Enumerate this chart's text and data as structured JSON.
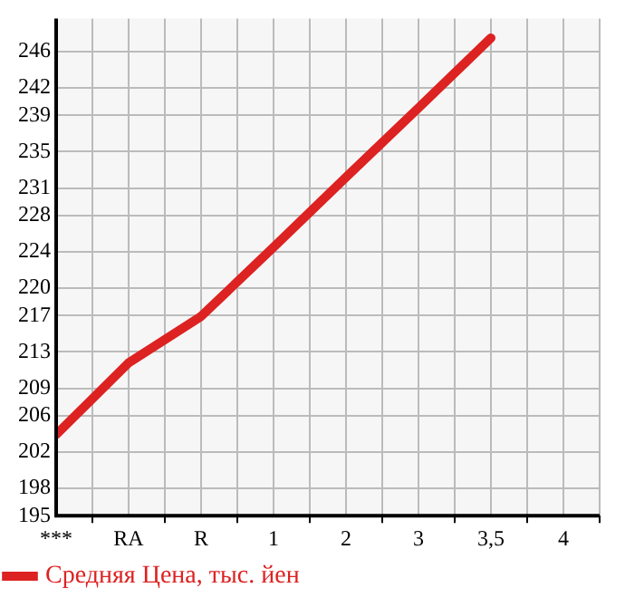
{
  "chart_data": {
    "type": "line",
    "categories": [
      "***",
      "RA",
      "R",
      "1",
      "2",
      "3",
      "3,5",
      "4"
    ],
    "series": [
      {
        "name": "Средняя Цена, тыс. йен",
        "color": "#dd2222",
        "values": [
          203.9,
          211.8,
          216.9,
          224.5,
          232.2,
          239.8,
          247.5,
          null
        ]
      }
    ],
    "ylim": [
      195,
      249.64
    ],
    "yticks": [
      195,
      198,
      202,
      206,
      209,
      213,
      217,
      220,
      224,
      228,
      231,
      235,
      239,
      242,
      246
    ],
    "grid": true,
    "legend": "bottom left",
    "marker": "none",
    "line_style": "solid"
  }
}
